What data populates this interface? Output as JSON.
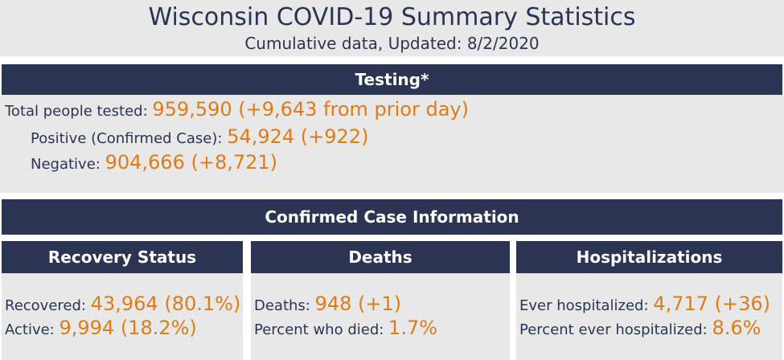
{
  "header": {
    "title": "Wisconsin COVID-19 Summary Statistics",
    "subtitle": "Cumulative data, Updated: 8/2/2020"
  },
  "testing": {
    "heading": "Testing*",
    "total_label": "Total people tested:",
    "total_value": "959,590 (+9,643 from prior day)",
    "positive_label": "Positive (Confirmed Case):",
    "positive_value": "54,924 (+922)",
    "negative_label": "Negative:",
    "negative_value": "904,666 (+8,721)"
  },
  "confirmed": {
    "heading": "Confirmed Case Information"
  },
  "recovery": {
    "heading": "Recovery Status",
    "recovered_label": "Recovered:",
    "recovered_value": "43,964 (80.1%)",
    "active_label": "Active:",
    "active_value": "9,994 (18.2%)"
  },
  "deaths": {
    "heading": "Deaths",
    "deaths_label": "Deaths:",
    "deaths_value": "948 (+1)",
    "percent_label": "Percent who died:",
    "percent_value": "1.7%"
  },
  "hospitalizations": {
    "heading": "Hospitalizations",
    "ever_label": "Ever hospitalized:",
    "ever_value": "4,717 (+36)",
    "percent_label": "Percent ever hospitalized:",
    "percent_value": "8.6%"
  },
  "colors": {
    "navy": "#2b3553",
    "accent": "#e07b16",
    "panel": "#e8e8e8"
  }
}
